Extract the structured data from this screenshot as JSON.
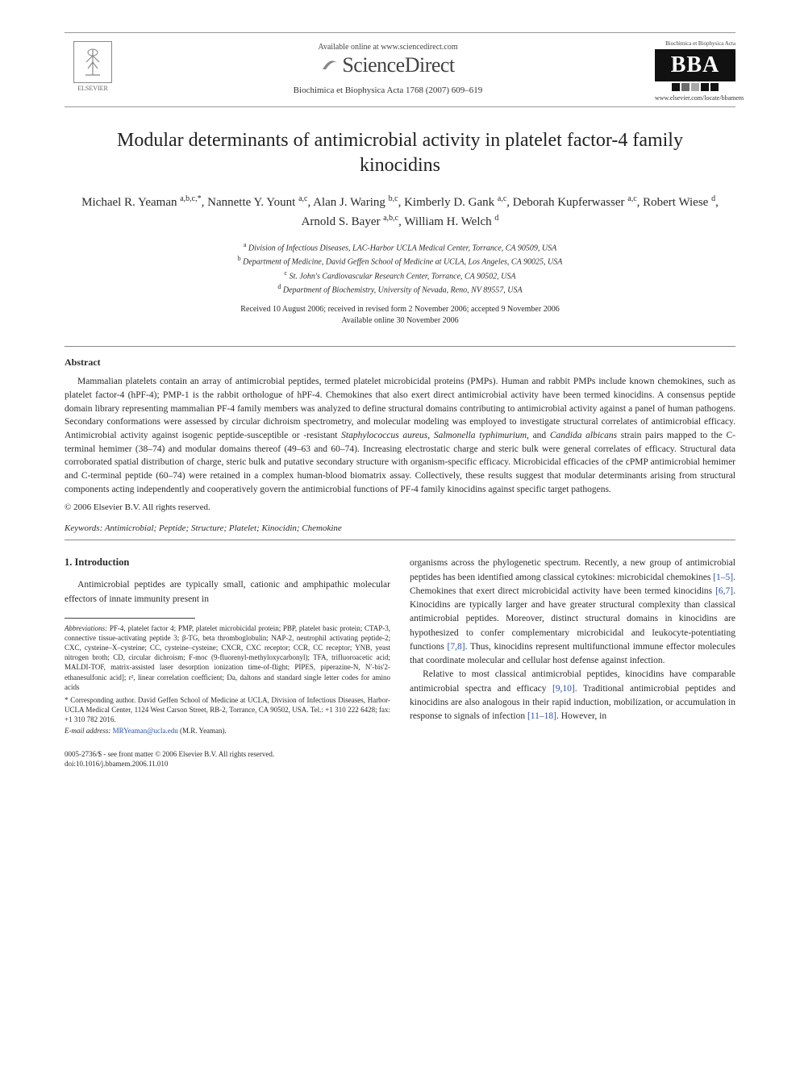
{
  "header": {
    "available_online": "Available online at www.sciencedirect.com",
    "sciencedirect": "ScienceDirect",
    "journal_citation": "Biochimica et Biophysica Acta 1768 (2007) 609–619",
    "elsevier_label": "ELSEVIER",
    "bba_top": "Biochimica et Biophysica Acta",
    "bba_abbrev": "BBA",
    "bba_url": "www.elsevier.com/locate/bbamem"
  },
  "title": "Modular determinants of antimicrobial activity in platelet factor-4 family kinocidins",
  "authors_html": "Michael R. Yeaman <sup>a,b,c,*</sup>, Nannette Y. Yount <sup>a,c</sup>, Alan J. Waring <sup>b,c</sup>, Kimberly D. Gank <sup>a,c</sup>, Deborah Kupferwasser <sup>a,c</sup>, Robert Wiese <sup>d</sup>, Arnold S. Bayer <sup>a,b,c</sup>, William H. Welch <sup>d</sup>",
  "affiliations": {
    "a": "Division of Infectious Diseases, LAC-Harbor UCLA Medical Center, Torrance, CA 90509, USA",
    "b": "Department of Medicine, David Geffen School of Medicine at UCLA, Los Angeles, CA 90025, USA",
    "c": "St. John's Cardiovascular Research Center, Torrance, CA 90502, USA",
    "d": "Department of Biochemistry, University of Nevada, Reno, NV 89557, USA"
  },
  "dates": {
    "received": "Received 10 August 2006; received in revised form 2 November 2006; accepted 9 November 2006",
    "available": "Available online 30 November 2006"
  },
  "abstract": {
    "heading": "Abstract",
    "body": "Mammalian platelets contain an array of antimicrobial peptides, termed platelet microbicidal proteins (PMPs). Human and rabbit PMPs include known chemokines, such as platelet factor-4 (hPF-4); PMP-1 is the rabbit orthologue of hPF-4. Chemokines that also exert direct antimicrobial activity have been termed kinocidins. A consensus peptide domain library representing mammalian PF-4 family members was analyzed to define structural domains contributing to antimicrobial activity against a panel of human pathogens. Secondary conformations were assessed by circular dichroism spectrometry, and molecular modeling was employed to investigate structural correlates of antimicrobial efficacy. Antimicrobial activity against isogenic peptide-susceptible or -resistant Staphylococcus aureus, Salmonella typhimurium, and Candida albicans strain pairs mapped to the C-terminal hemimer (38–74) and modular domains thereof (49–63 and 60–74). Increasing electrostatic charge and steric bulk were general correlates of efficacy. Structural data corroborated spatial distribution of charge, steric bulk and putative secondary structure with organism-specific efficacy. Microbicidal efficacies of the cPMP antimicrobial hemimer and C-terminal peptide (60–74) were retained in a complex human-blood biomatrix assay. Collectively, these results suggest that modular determinants arising from structural components acting independently and cooperatively govern the antimicrobial functions of PF-4 family kinocidins against specific target pathogens.",
    "copyright": "© 2006 Elsevier B.V. All rights reserved."
  },
  "keywords": {
    "label": "Keywords:",
    "list": "Antimicrobial; Peptide; Structure; Platelet; Kinocidin; Chemokine"
  },
  "intro": {
    "heading": "1. Introduction",
    "p1": "Antimicrobial peptides are typically small, cationic and amphipathic molecular effectors of innate immunity present in",
    "p2a": "organisms across the phylogenetic spectrum. Recently, a new group of antimicrobial peptides has been identified among classical cytokines: microbicidal chemokines ",
    "cite1": "[1–5]",
    "p2b": ". Chemokines that exert direct microbicidal activity have been termed kinocidins ",
    "cite2": "[6,7]",
    "p2c": ". Kinocidins are typically larger and have greater structural complexity than classical antimicrobial peptides. Moreover, distinct structural domains in kinocidins are hypothesized to confer complementary microbicidal and leukocyte-potentiating functions ",
    "cite3": "[7,8]",
    "p2d": ". Thus, kinocidins represent multifunctional immune effector molecules that coordinate molecular and cellular host defense against infection.",
    "p3a": "Relative to most classical antimicrobial peptides, kinocidins have comparable antimicrobial spectra and efficacy ",
    "cite4": "[9,10]",
    "p3b": ". Traditional antimicrobial peptides and kinocidins are also analogous in their rapid induction, mobilization, or accumulation in response to signals of infection ",
    "cite5": "[11–18]",
    "p3c": ". However, in"
  },
  "footnotes": {
    "abbrev_label": "Abbreviations:",
    "abbrev_body": " PF-4, platelet factor 4; PMP, platelet microbicidal protein; PBP, platelet basic protein; CTAP-3, connective tissue-activating peptide 3; β-TG, beta thromboglobulin; NAP-2, neutrophil activating peptide-2; CXC, cysteine–X–cysteine; CC, cysteine–cysteine; CXCR, CXC receptor; CCR, CC receptor; YNB, yeast nitrogen broth; CD, circular dichroism; F-moc (9-fluorenyl-methyloxycarbonyl); TFA, trifluoroacetic acid; MALDI-TOF, matrix-assisted laser desorption ionization time-of-flight; PIPES, piperazine-N, N′-bis'2-ethanesulfonic acid]; r², linear correlation coefficient; Da, daltons and standard single letter codes for amino acids",
    "corr_label": "* Corresponding author.",
    "corr_body": " David Geffen School of Medicine at UCLA, Division of Infectious Diseases, Harbor-UCLA Medical Center, 1124 West Carson Street, RB-2, Torrance, CA 90502, USA. Tel.: +1 310 222 6428; fax: +1 310 782 2016.",
    "email_label": "E-mail address:",
    "email": "MRYeaman@ucla.edu",
    "email_tail": " (M.R. Yeaman)."
  },
  "doi": {
    "line1": "0005-2736/$ - see front matter © 2006 Elsevier B.V. All rights reserved.",
    "line2": "doi:10.1016/j.bbamem.2006.11.010"
  },
  "colors": {
    "link": "#2b50a8",
    "text": "#2a2a2a",
    "rule": "#888888"
  }
}
